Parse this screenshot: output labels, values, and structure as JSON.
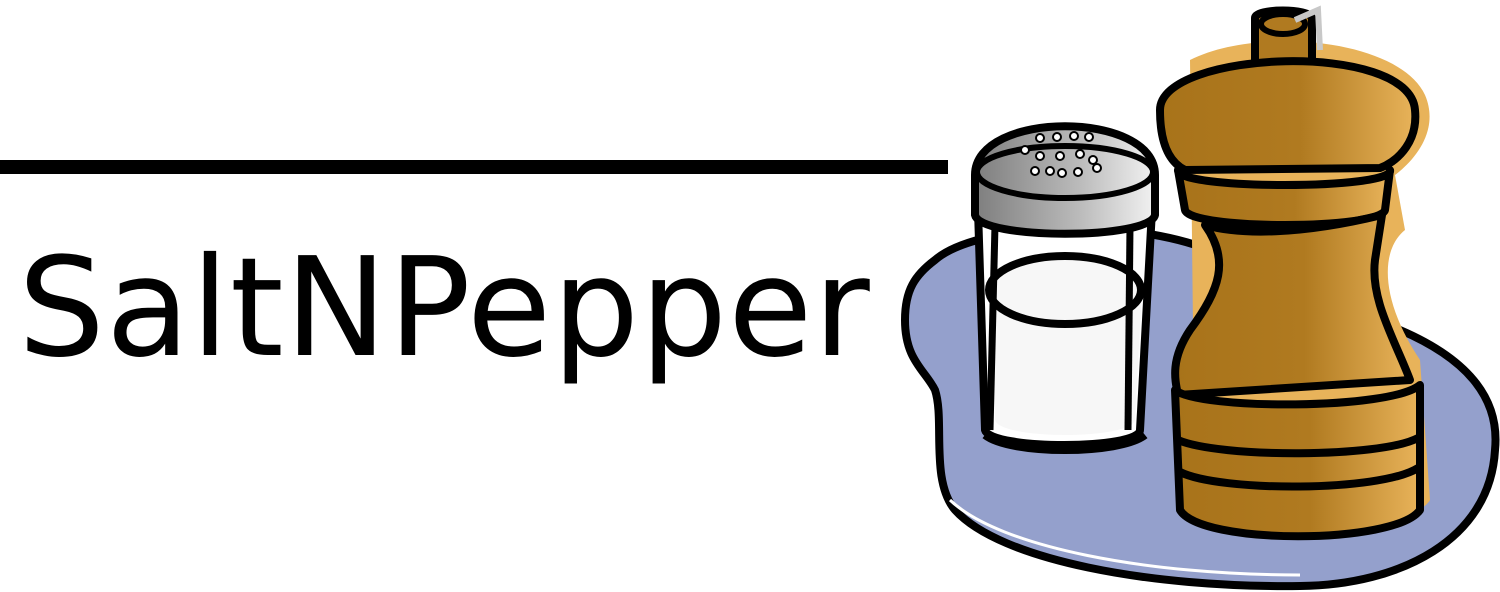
{
  "logo": {
    "brand_name": "SaltNPepper",
    "illustration": "salt-and-pepper-shakers-on-tray",
    "colors": {
      "text": "#000000",
      "tray": "#94A0CC",
      "pepper_mill_dark": "#A8731A",
      "pepper_mill_light": "#E8B35A",
      "salt_cap_dark": "#8A8A8A",
      "salt_cap_light": "#EFEFEF",
      "salt": "#F7F7F7"
    }
  }
}
